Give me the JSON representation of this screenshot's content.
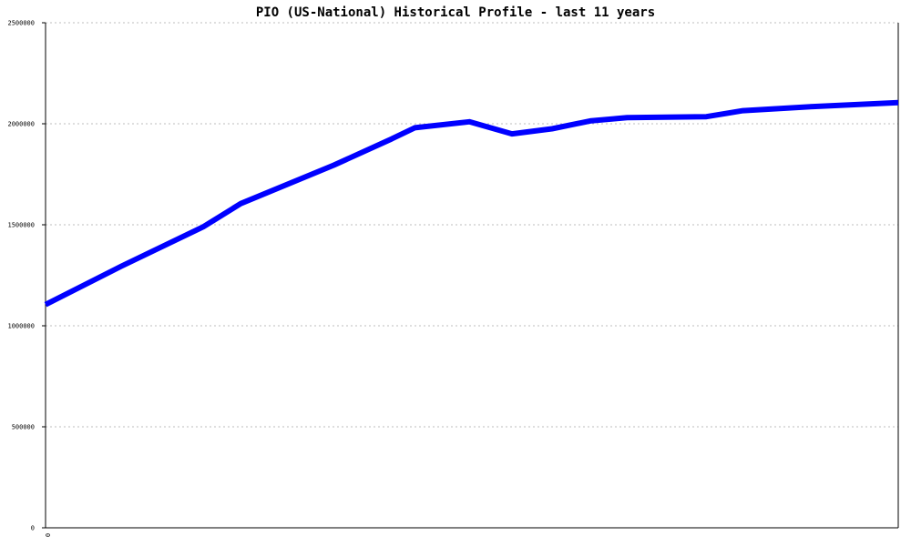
{
  "chart_data": {
    "type": "line",
    "title": "PIO (US-National) Historical Profile - last 11 years",
    "xlabel": "",
    "ylabel": "",
    "x_tick_labels": [
      "0"
    ],
    "y_tick_labels": [
      "0",
      "500000",
      "1000000",
      "1500000",
      "2000000",
      "2500000"
    ],
    "y_ticks": [
      0,
      500000,
      1000000,
      1500000,
      2000000,
      2500000
    ],
    "ylim": [
      0,
      2500000
    ],
    "xlim": [
      0,
      1
    ],
    "grid": true,
    "legend": "none",
    "series": [
      {
        "color": "#0000ff",
        "points": [
          [
            0.0,
            1105000
          ],
          [
            0.089,
            1295000
          ],
          [
            0.185,
            1490000
          ],
          [
            0.229,
            1605000
          ],
          [
            0.338,
            1795000
          ],
          [
            0.406,
            1925000
          ],
          [
            0.433,
            1980000
          ],
          [
            0.497,
            2010000
          ],
          [
            0.547,
            1950000
          ],
          [
            0.594,
            1975000
          ],
          [
            0.64,
            2015000
          ],
          [
            0.682,
            2030000
          ],
          [
            0.775,
            2035000
          ],
          [
            0.818,
            2065000
          ],
          [
            0.9,
            2085000
          ],
          [
            1.0,
            2105000
          ]
        ]
      }
    ]
  }
}
